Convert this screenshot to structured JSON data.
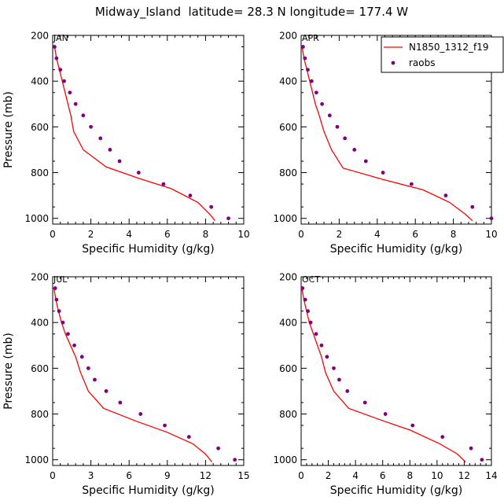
{
  "figure": {
    "title": "Midway_Island  latitude= 28.3 N longitude= 177.4 W"
  },
  "colors": {
    "model": "#ff0000",
    "raobs": "#800080",
    "axis": "#000000"
  },
  "legend": {
    "placement": "top-right of APR panel",
    "entries": [
      {
        "label": "N1850_1312_f19",
        "style": "line",
        "color": "#ff0000"
      },
      {
        "label": "raobs",
        "style": "dots",
        "color": "#800080"
      }
    ]
  },
  "chart_data": [
    {
      "type": "line",
      "panel_label": "JAN",
      "xlabel": "Specific Humidity (g/kg)",
      "ylabel": "Pressure (mb)",
      "xlim": [
        0,
        10
      ],
      "ylim": [
        200,
        1025
      ],
      "y_inverted": true,
      "xticks": [
        "0",
        "2",
        "4",
        "6",
        "8",
        "10"
      ],
      "yticks": [
        "200",
        "400",
        "600",
        "800",
        "1000"
      ],
      "series": [
        {
          "name": "N1850_1312_f19",
          "style": "line",
          "points": [
            [
              0.1,
              250
            ],
            [
              0.2,
              300
            ],
            [
              0.35,
              350
            ],
            [
              0.5,
              400
            ],
            [
              0.65,
              450
            ],
            [
              0.8,
              500
            ],
            [
              0.95,
              550
            ],
            [
              1.1,
              620
            ],
            [
              1.6,
              700
            ],
            [
              2.8,
              775
            ],
            [
              4.5,
              825
            ],
            [
              6.2,
              870
            ],
            [
              7.6,
              930
            ],
            [
              8.2,
              980
            ],
            [
              8.5,
              1010
            ]
          ]
        },
        {
          "name": "raobs",
          "style": "dots",
          "points": [
            [
              0.1,
              250
            ],
            [
              0.2,
              300
            ],
            [
              0.4,
              350
            ],
            [
              0.6,
              400
            ],
            [
              0.9,
              450
            ],
            [
              1.2,
              500
            ],
            [
              1.6,
              550
            ],
            [
              2.0,
              600
            ],
            [
              2.5,
              650
            ],
            [
              3.0,
              700
            ],
            [
              3.5,
              750
            ],
            [
              4.5,
              800
            ],
            [
              5.8,
              850
            ],
            [
              7.2,
              900
            ],
            [
              8.3,
              950
            ],
            [
              9.2,
              1000
            ]
          ]
        }
      ]
    },
    {
      "type": "line",
      "panel_label": "APR",
      "xlabel": "Specific Humidity (g/kg)",
      "ylabel": "",
      "xlim": [
        0,
        10
      ],
      "ylim": [
        200,
        1025
      ],
      "y_inverted": true,
      "xticks": [
        "0",
        "2",
        "4",
        "6",
        "8",
        "10"
      ],
      "yticks": [
        "200",
        "400",
        "600",
        "800",
        "1000"
      ],
      "series": [
        {
          "name": "N1850_1312_f19",
          "style": "line",
          "points": [
            [
              0.05,
              250
            ],
            [
              0.15,
              300
            ],
            [
              0.3,
              350
            ],
            [
              0.45,
              400
            ],
            [
              0.6,
              450
            ],
            [
              0.75,
              500
            ],
            [
              0.95,
              550
            ],
            [
              1.2,
              620
            ],
            [
              1.6,
              700
            ],
            [
              2.2,
              780
            ],
            [
              4.3,
              830
            ],
            [
              6.4,
              875
            ],
            [
              7.8,
              930
            ],
            [
              8.6,
              980
            ],
            [
              9.0,
              1010
            ]
          ]
        },
        {
          "name": "raobs",
          "style": "dots",
          "points": [
            [
              0.1,
              250
            ],
            [
              0.2,
              300
            ],
            [
              0.35,
              350
            ],
            [
              0.55,
              400
            ],
            [
              0.8,
              450
            ],
            [
              1.1,
              500
            ],
            [
              1.5,
              550
            ],
            [
              1.9,
              600
            ],
            [
              2.3,
              650
            ],
            [
              2.8,
              700
            ],
            [
              3.4,
              750
            ],
            [
              4.3,
              800
            ],
            [
              5.8,
              850
            ],
            [
              7.6,
              900
            ],
            [
              9.0,
              950
            ],
            [
              10.0,
              1000
            ]
          ]
        }
      ]
    },
    {
      "type": "line",
      "panel_label": "JUL",
      "xlabel": "Specific Humidity (g/kg)",
      "ylabel": "Pressure (mb)",
      "xlim": [
        0,
        15
      ],
      "ylim": [
        200,
        1025
      ],
      "y_inverted": true,
      "xticks": [
        "0",
        "3",
        "6",
        "9",
        "12",
        "15"
      ],
      "yticks": [
        "200",
        "400",
        "600",
        "800",
        "1000"
      ],
      "series": [
        {
          "name": "N1850_1312_f19",
          "style": "line",
          "points": [
            [
              0.1,
              250
            ],
            [
              0.25,
              300
            ],
            [
              0.45,
              350
            ],
            [
              0.7,
              400
            ],
            [
              1.0,
              450
            ],
            [
              1.4,
              500
            ],
            [
              1.8,
              550
            ],
            [
              2.2,
              620
            ],
            [
              2.8,
              700
            ],
            [
              4.0,
              775
            ],
            [
              6.5,
              830
            ],
            [
              9.0,
              880
            ],
            [
              11.0,
              930
            ],
            [
              12.0,
              975
            ],
            [
              12.5,
              1010
            ]
          ]
        },
        {
          "name": "raobs",
          "style": "dots",
          "points": [
            [
              0.2,
              250
            ],
            [
              0.3,
              300
            ],
            [
              0.5,
              350
            ],
            [
              0.8,
              400
            ],
            [
              1.2,
              450
            ],
            [
              1.7,
              500
            ],
            [
              2.3,
              550
            ],
            [
              2.8,
              600
            ],
            [
              3.3,
              650
            ],
            [
              4.2,
              700
            ],
            [
              5.3,
              750
            ],
            [
              6.9,
              800
            ],
            [
              8.8,
              850
            ],
            [
              10.7,
              900
            ],
            [
              13.0,
              950
            ],
            [
              14.3,
              1000
            ]
          ]
        }
      ]
    },
    {
      "type": "line",
      "panel_label": "OCT",
      "xlabel": "Specific Humidity (g/kg)",
      "ylabel": "",
      "xlim": [
        0,
        14
      ],
      "ylim": [
        200,
        1025
      ],
      "y_inverted": true,
      "xticks": [
        "0",
        "2",
        "4",
        "6",
        "8",
        "10",
        "12",
        "14"
      ],
      "yticks": [
        "200",
        "400",
        "600",
        "800",
        "1000"
      ],
      "series": [
        {
          "name": "N1850_1312_f19",
          "style": "line",
          "points": [
            [
              0.05,
              250
            ],
            [
              0.2,
              300
            ],
            [
              0.4,
              350
            ],
            [
              0.6,
              400
            ],
            [
              0.9,
              450
            ],
            [
              1.2,
              500
            ],
            [
              1.5,
              550
            ],
            [
              1.8,
              620
            ],
            [
              2.4,
              700
            ],
            [
              3.5,
              775
            ],
            [
              5.8,
              825
            ],
            [
              8.0,
              870
            ],
            [
              10.2,
              930
            ],
            [
              11.5,
              975
            ],
            [
              12.1,
              1010
            ]
          ]
        },
        {
          "name": "raobs",
          "style": "dots",
          "points": [
            [
              0.1,
              250
            ],
            [
              0.3,
              300
            ],
            [
              0.5,
              350
            ],
            [
              0.7,
              400
            ],
            [
              1.1,
              450
            ],
            [
              1.5,
              500
            ],
            [
              1.9,
              550
            ],
            [
              2.4,
              600
            ],
            [
              2.8,
              650
            ],
            [
              3.4,
              700
            ],
            [
              4.7,
              750
            ],
            [
              6.2,
              800
            ],
            [
              8.2,
              850
            ],
            [
              10.4,
              900
            ],
            [
              12.5,
              950
            ],
            [
              13.3,
              1000
            ]
          ]
        }
      ]
    }
  ]
}
